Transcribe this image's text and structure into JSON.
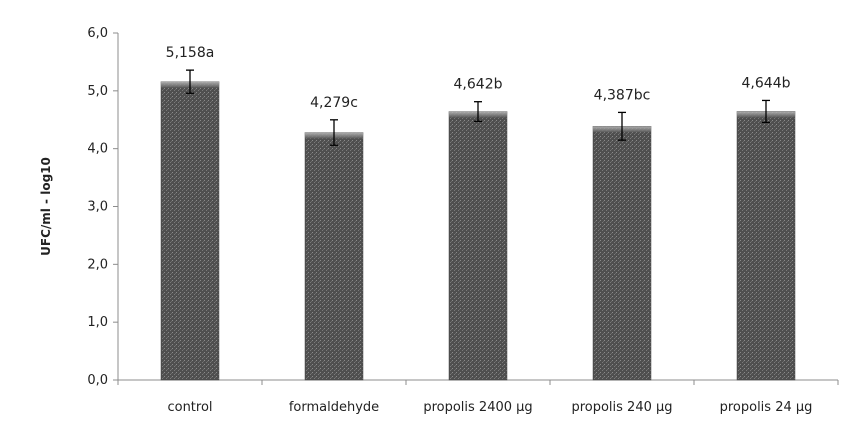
{
  "chart_data": {
    "type": "bar",
    "title": "",
    "xlabel": "",
    "ylabel": "UFC/ml - log10",
    "categories": [
      "control",
      "formaldehyde",
      "propolis 2400 µg",
      "propolis 240 µg",
      "propolis 24 µg"
    ],
    "values": [
      5.158,
      4.279,
      4.642,
      4.387,
      4.644
    ],
    "error": [
      0.2,
      0.22,
      0.17,
      0.24,
      0.19
    ],
    "data_labels": [
      "5,158a",
      "4,279c",
      "4,642b",
      "4,387bc",
      "4,644b"
    ],
    "ylim": [
      0,
      6
    ],
    "yticks": [
      0,
      1,
      2,
      3,
      4,
      5,
      6
    ],
    "ytick_labels": [
      "0,0",
      "1,0",
      "2,0",
      "3,0",
      "4,0",
      "5,0",
      "6,0"
    ],
    "grid": false,
    "legend": "none",
    "bar_color": "#5a5a5a"
  }
}
